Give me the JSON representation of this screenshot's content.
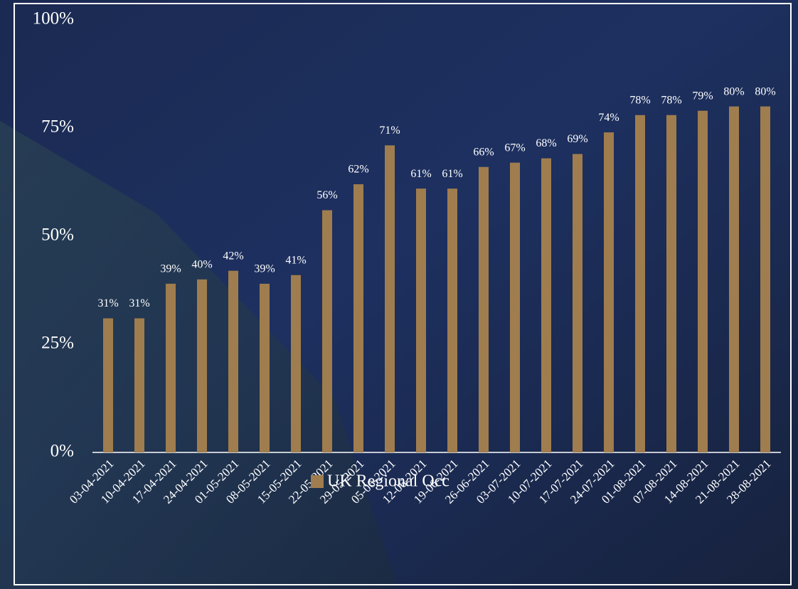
{
  "chart_data": {
    "type": "bar",
    "categories": [
      "03-04-2021",
      "10-04-2021",
      "17-04-2021",
      "24-04-2021",
      "01-05-2021",
      "08-05-2021",
      "15-05-2021",
      "22-05-2021",
      "29-05-2021",
      "05-06-2021",
      "12-06-2021",
      "19-06-2021",
      "26-06-2021",
      "03-07-2021",
      "10-07-2021",
      "17-07-2021",
      "24-07-2021",
      "01-08-2021",
      "07-08-2021",
      "14-08-2021",
      "21-08-2021",
      "28-08-2021"
    ],
    "series": [
      {
        "name": "UK Regional Occ",
        "color": "#a07d4e",
        "values": [
          31,
          31,
          39,
          40,
          42,
          39,
          41,
          56,
          62,
          71,
          61,
          61,
          66,
          67,
          68,
          69,
          74,
          78,
          78,
          79,
          80,
          80
        ],
        "value_labels": [
          "31%",
          "31%",
          "39%",
          "40%",
          "42%",
          "39%",
          "41%",
          "56%",
          "62%",
          "71%",
          "61%",
          "61%",
          "66%",
          "67%",
          "68%",
          "69%",
          "74%",
          "78%",
          "78%",
          "79%",
          "80%",
          "80%"
        ]
      }
    ],
    "ylim": [
      0,
      100
    ],
    "yticks": [
      {
        "value": 0,
        "label": "0%"
      },
      {
        "value": 25,
        "label": "25%"
      },
      {
        "value": 50,
        "label": "50%"
      },
      {
        "value": 75,
        "label": "75%"
      },
      {
        "value": 100,
        "label": "100%"
      }
    ],
    "grid": false
  }
}
